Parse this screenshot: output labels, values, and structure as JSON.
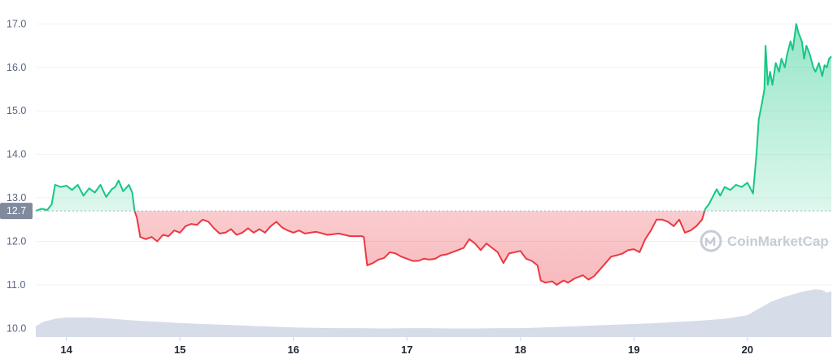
{
  "chart_data": {
    "type": "area",
    "y_axis": {
      "ticks": [
        10.0,
        11.0,
        12.0,
        13.0,
        14.0,
        15.0,
        16.0,
        17.0
      ],
      "labels": [
        "10.0",
        "11.0",
        "12.0",
        "13.0",
        "14.0",
        "15.0",
        "16.0",
        "17.0"
      ],
      "range": [
        9.8,
        17.4
      ]
    },
    "x_axis": {
      "ticks": [
        14,
        15,
        16,
        17,
        18,
        19,
        20
      ],
      "labels": [
        "14",
        "15",
        "16",
        "17",
        "18",
        "19",
        "20"
      ],
      "range": [
        13.73,
        20.74
      ]
    },
    "reference_price": 12.7,
    "reference_label": "12.7",
    "colors": {
      "above": "#16c784",
      "below": "#ea3943",
      "volume": "#cfd6e4",
      "grid": "#eff2f5",
      "ref_line": "#a6b0c3",
      "ref_label_bg": "#808a9d",
      "tick": "#58667e"
    },
    "price_series": [
      [
        13.73,
        12.7
      ],
      [
        13.78,
        12.75
      ],
      [
        13.83,
        12.72
      ],
      [
        13.87,
        12.85
      ],
      [
        13.9,
        13.3
      ],
      [
        13.95,
        13.25
      ],
      [
        14.0,
        13.28
      ],
      [
        14.05,
        13.18
      ],
      [
        14.1,
        13.3
      ],
      [
        14.15,
        13.05
      ],
      [
        14.2,
        13.22
      ],
      [
        14.25,
        13.12
      ],
      [
        14.3,
        13.3
      ],
      [
        14.35,
        13.02
      ],
      [
        14.4,
        13.2
      ],
      [
        14.43,
        13.25
      ],
      [
        14.46,
        13.4
      ],
      [
        14.5,
        13.15
      ],
      [
        14.55,
        13.3
      ],
      [
        14.58,
        13.12
      ],
      [
        14.6,
        12.7
      ],
      [
        14.62,
        12.55
      ],
      [
        14.65,
        12.1
      ],
      [
        14.7,
        12.05
      ],
      [
        14.75,
        12.1
      ],
      [
        14.8,
        12.0
      ],
      [
        14.85,
        12.15
      ],
      [
        14.9,
        12.12
      ],
      [
        14.95,
        12.25
      ],
      [
        15.0,
        12.2
      ],
      [
        15.05,
        12.35
      ],
      [
        15.1,
        12.4
      ],
      [
        15.15,
        12.38
      ],
      [
        15.2,
        12.5
      ],
      [
        15.25,
        12.45
      ],
      [
        15.3,
        12.3
      ],
      [
        15.35,
        12.18
      ],
      [
        15.4,
        12.2
      ],
      [
        15.45,
        12.28
      ],
      [
        15.5,
        12.15
      ],
      [
        15.55,
        12.2
      ],
      [
        15.6,
        12.3
      ],
      [
        15.65,
        12.2
      ],
      [
        15.7,
        12.28
      ],
      [
        15.75,
        12.2
      ],
      [
        15.8,
        12.35
      ],
      [
        15.85,
        12.45
      ],
      [
        15.9,
        12.32
      ],
      [
        15.95,
        12.25
      ],
      [
        16.0,
        12.2
      ],
      [
        16.05,
        12.25
      ],
      [
        16.1,
        12.18
      ],
      [
        16.2,
        12.22
      ],
      [
        16.3,
        12.15
      ],
      [
        16.4,
        12.18
      ],
      [
        16.5,
        12.12
      ],
      [
        16.6,
        12.12
      ],
      [
        16.62,
        12.1
      ],
      [
        16.65,
        11.45
      ],
      [
        16.7,
        11.5
      ],
      [
        16.75,
        11.58
      ],
      [
        16.8,
        11.62
      ],
      [
        16.85,
        11.75
      ],
      [
        16.9,
        11.72
      ],
      [
        16.95,
        11.65
      ],
      [
        17.0,
        11.6
      ],
      [
        17.05,
        11.55
      ],
      [
        17.1,
        11.55
      ],
      [
        17.15,
        11.6
      ],
      [
        17.2,
        11.58
      ],
      [
        17.25,
        11.6
      ],
      [
        17.3,
        11.68
      ],
      [
        17.35,
        11.7
      ],
      [
        17.4,
        11.75
      ],
      [
        17.45,
        11.8
      ],
      [
        17.5,
        11.85
      ],
      [
        17.55,
        12.05
      ],
      [
        17.6,
        11.95
      ],
      [
        17.65,
        11.8
      ],
      [
        17.7,
        11.95
      ],
      [
        17.75,
        11.85
      ],
      [
        17.8,
        11.75
      ],
      [
        17.85,
        11.5
      ],
      [
        17.9,
        11.72
      ],
      [
        17.95,
        11.75
      ],
      [
        18.0,
        11.78
      ],
      [
        18.05,
        11.6
      ],
      [
        18.1,
        11.55
      ],
      [
        18.15,
        11.45
      ],
      [
        18.18,
        11.1
      ],
      [
        18.22,
        11.05
      ],
      [
        18.28,
        11.08
      ],
      [
        18.32,
        11.0
      ],
      [
        18.38,
        11.1
      ],
      [
        18.42,
        11.05
      ],
      [
        18.48,
        11.15
      ],
      [
        18.55,
        11.22
      ],
      [
        18.6,
        11.12
      ],
      [
        18.65,
        11.2
      ],
      [
        18.7,
        11.35
      ],
      [
        18.75,
        11.5
      ],
      [
        18.8,
        11.65
      ],
      [
        18.85,
        11.68
      ],
      [
        18.9,
        11.72
      ],
      [
        18.95,
        11.8
      ],
      [
        19.0,
        11.82
      ],
      [
        19.05,
        11.75
      ],
      [
        19.1,
        12.05
      ],
      [
        19.15,
        12.25
      ],
      [
        19.2,
        12.5
      ],
      [
        19.25,
        12.5
      ],
      [
        19.3,
        12.45
      ],
      [
        19.35,
        12.35
      ],
      [
        19.4,
        12.5
      ],
      [
        19.45,
        12.2
      ],
      [
        19.5,
        12.25
      ],
      [
        19.55,
        12.35
      ],
      [
        19.6,
        12.5
      ],
      [
        19.63,
        12.75
      ],
      [
        19.66,
        12.85
      ],
      [
        19.7,
        13.05
      ],
      [
        19.73,
        13.2
      ],
      [
        19.76,
        13.05
      ],
      [
        19.8,
        13.25
      ],
      [
        19.85,
        13.18
      ],
      [
        19.9,
        13.3
      ],
      [
        19.95,
        13.25
      ],
      [
        20.0,
        13.35
      ],
      [
        20.05,
        13.1
      ],
      [
        20.08,
        14.0
      ],
      [
        20.1,
        14.8
      ],
      [
        20.13,
        15.2
      ],
      [
        20.15,
        15.5
      ],
      [
        20.16,
        16.5
      ],
      [
        20.18,
        15.6
      ],
      [
        20.2,
        15.9
      ],
      [
        20.22,
        15.6
      ],
      [
        20.25,
        16.1
      ],
      [
        20.28,
        15.9
      ],
      [
        20.3,
        16.2
      ],
      [
        20.33,
        16.0
      ],
      [
        20.35,
        16.3
      ],
      [
        20.38,
        16.6
      ],
      [
        20.4,
        16.4
      ],
      [
        20.43,
        17.0
      ],
      [
        20.45,
        16.8
      ],
      [
        20.48,
        16.6
      ],
      [
        20.5,
        16.2
      ],
      [
        20.52,
        16.5
      ],
      [
        20.55,
        16.3
      ],
      [
        20.58,
        16.0
      ],
      [
        20.6,
        15.9
      ],
      [
        20.63,
        16.1
      ],
      [
        20.66,
        15.8
      ],
      [
        20.68,
        16.05
      ],
      [
        20.7,
        16.0
      ],
      [
        20.72,
        16.2
      ],
      [
        20.74,
        16.25
      ]
    ],
    "volume_series": [
      [
        13.73,
        10.05
      ],
      [
        13.8,
        10.15
      ],
      [
        13.9,
        10.22
      ],
      [
        14.0,
        10.25
      ],
      [
        14.2,
        10.25
      ],
      [
        14.4,
        10.22
      ],
      [
        14.6,
        10.18
      ],
      [
        14.8,
        10.15
      ],
      [
        15.0,
        10.12
      ],
      [
        15.2,
        10.1
      ],
      [
        15.4,
        10.08
      ],
      [
        15.6,
        10.06
      ],
      [
        15.8,
        10.04
      ],
      [
        16.0,
        10.02
      ],
      [
        16.2,
        10.01
      ],
      [
        16.4,
        10.0
      ],
      [
        16.6,
        10.0
      ],
      [
        16.8,
        9.99
      ],
      [
        17.0,
        10.0
      ],
      [
        17.2,
        10.0
      ],
      [
        17.4,
        9.99
      ],
      [
        17.6,
        9.99
      ],
      [
        17.8,
        10.0
      ],
      [
        18.0,
        10.0
      ],
      [
        18.2,
        10.02
      ],
      [
        18.4,
        10.04
      ],
      [
        18.6,
        10.06
      ],
      [
        18.8,
        10.08
      ],
      [
        19.0,
        10.1
      ],
      [
        19.2,
        10.12
      ],
      [
        19.4,
        10.15
      ],
      [
        19.6,
        10.18
      ],
      [
        19.8,
        10.22
      ],
      [
        20.0,
        10.3
      ],
      [
        20.1,
        10.45
      ],
      [
        20.2,
        10.6
      ],
      [
        20.3,
        10.7
      ],
      [
        20.4,
        10.78
      ],
      [
        20.5,
        10.85
      ],
      [
        20.6,
        10.9
      ],
      [
        20.66,
        10.88
      ],
      [
        20.7,
        10.82
      ],
      [
        20.74,
        10.85
      ]
    ]
  },
  "watermark": {
    "text": "CoinMarketCap",
    "icon": "coinmarketcap-logo-icon"
  }
}
